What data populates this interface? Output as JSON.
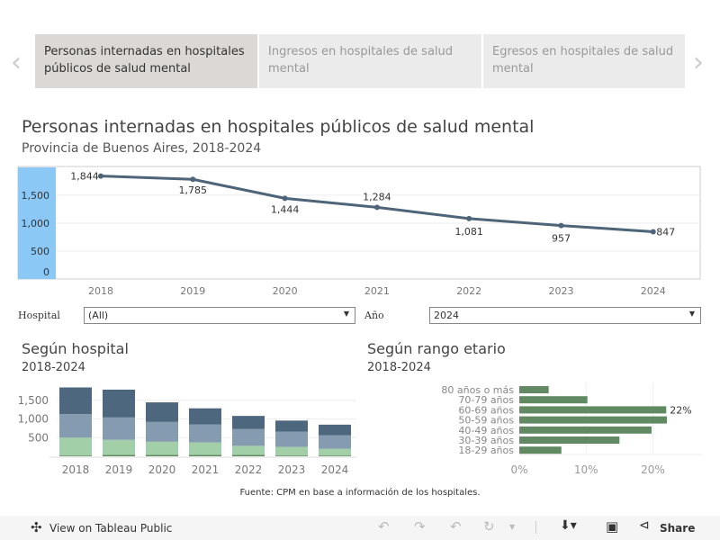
{
  "tabs": [
    {
      "label": "Personas internadas en hospitales públicos de salud mental",
      "active": true
    },
    {
      "label": "Ingresos en hospitales de salud mental",
      "active": false
    },
    {
      "label": "Egresos en hospitales de salud mental",
      "active": false
    }
  ],
  "nav": {
    "prev_icon": "chevron-left-icon",
    "next_icon": "chevron-right-icon"
  },
  "filters": {
    "hospital": {
      "label": "Hospital",
      "value": "(All)"
    },
    "anio": {
      "label": "Año",
      "value": "2024"
    }
  },
  "source": "Fuente: CPM en base a información de los hospitales.",
  "toolbar": {
    "view_label": "View on Tableau Public",
    "share_label": "Share"
  },
  "chart_data": [
    {
      "type": "line",
      "title": "Personas internadas en hospitales públicos de salud mental",
      "subtitle": "Provincia de Buenos Aires, 2018-2024",
      "x": [
        "2018",
        "2019",
        "2020",
        "2021",
        "2022",
        "2023",
        "2024"
      ],
      "values": [
        1844,
        1785,
        1444,
        1284,
        1081,
        957,
        847
      ],
      "data_labels": [
        "1,844",
        "1,785",
        "1,444",
        "1,284",
        "1,081",
        "957",
        "847"
      ],
      "yticks": [
        "0",
        "500",
        "1,000",
        "1,500"
      ],
      "ylim": [
        0,
        1950
      ],
      "color": "#4e6479",
      "highlight_band_color": "#8cc8f5",
      "grid": true
    },
    {
      "type": "bar",
      "stacked": true,
      "title": "Según hospital",
      "subtitle": "2018-2024",
      "categories": [
        "2018",
        "2019",
        "2020",
        "2021",
        "2022",
        "2023",
        "2024"
      ],
      "series": [
        {
          "values": [
            20,
            40,
            40,
            40,
            40,
            20,
            20
          ],
          "color": "#5f8a60"
        },
        {
          "values": [
            480,
            400,
            350,
            330,
            240,
            230,
            180
          ],
          "color": "#a3cfa8"
        },
        {
          "values": [
            630,
            600,
            530,
            480,
            450,
            410,
            360
          ],
          "color": "#859cb0"
        },
        {
          "values": [
            714,
            745,
            524,
            434,
            351,
            297,
            287
          ],
          "color": "#4d677f"
        }
      ],
      "yticks": [
        "500",
        "1,000",
        "1,500"
      ],
      "ylim": [
        0,
        1900
      ],
      "grid": true
    },
    {
      "type": "bar",
      "orientation": "horizontal",
      "title": "Según rango etario",
      "subtitle": "2018-2024",
      "categories": [
        "80 años o más",
        "70-79 años",
        "60-69 años",
        "50-59 años",
        "40-49 años",
        "30-39 años",
        "18-29 años"
      ],
      "values": [
        4.4,
        10.2,
        22,
        22.1,
        19.8,
        15,
        6.3
      ],
      "annotation": {
        "category": "60-69 años",
        "text": "22%"
      },
      "xticks": [
        "0%",
        "10%",
        "20%"
      ],
      "xlim": [
        0,
        27
      ],
      "color": "#618a63",
      "grid": true
    }
  ]
}
